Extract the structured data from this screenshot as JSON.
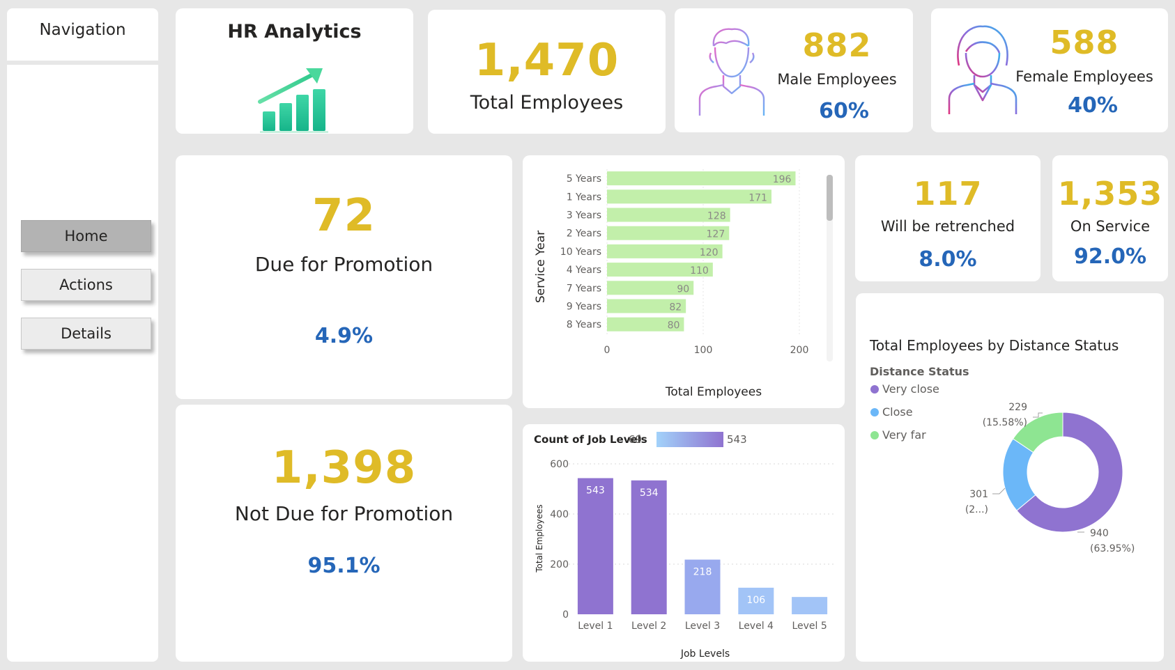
{
  "navigation": {
    "title": "Navigation",
    "buttons": [
      {
        "label": "Home",
        "active": true
      },
      {
        "label": "Actions",
        "active": false
      },
      {
        "label": "Details",
        "active": false
      }
    ]
  },
  "header": {
    "title": "HR Analytics",
    "logo_icon": "growth-chart-icon"
  },
  "kpis": {
    "total_employees": {
      "value": "1,470",
      "label": "Total Employees"
    },
    "male": {
      "value": "882",
      "label": "Male Employees",
      "pct": "60%",
      "icon": "male-user-icon"
    },
    "female": {
      "value": "588",
      "label": "Female Employees",
      "pct": "40%",
      "icon": "female-user-icon"
    },
    "due_promotion": {
      "value": "72",
      "label": "Due for Promotion",
      "pct": "4.9%"
    },
    "not_due_promotion": {
      "value": "1,398",
      "label": "Not Due for Promotion",
      "pct": "95.1%"
    },
    "retrenched": {
      "value": "117",
      "label": "Will be retrenched",
      "pct": "8.0%"
    },
    "on_service": {
      "value": "1,353",
      "label": "On Service",
      "pct": "92.0%"
    }
  },
  "colors": {
    "kpi_value": "#dfbb27",
    "kpi_pct": "#2566b8",
    "bar_green": "#c2efaa",
    "level_purple": "#8f73d0",
    "level_blue": "#a2c4f7",
    "very_close": "#8f73d0",
    "close": "#6bb7f8",
    "very_far": "#8ee592"
  },
  "chart_data": [
    {
      "type": "bar",
      "orientation": "horizontal",
      "categories": [
        "5 Years",
        "1 Years",
        "3 Years",
        "2 Years",
        "10 Years",
        "4 Years",
        "7 Years",
        "9 Years",
        "8 Years"
      ],
      "values": [
        196,
        171,
        128,
        127,
        120,
        110,
        90,
        82,
        80
      ],
      "xlabel": "Total Employees",
      "ylabel": "Service Year",
      "xlim": [
        0,
        200
      ],
      "xticks": [
        "0",
        "100",
        "200"
      ],
      "grid": true
    },
    {
      "type": "bar",
      "categories": [
        "Level 1",
        "Level 2",
        "Level 3",
        "Level 4",
        "Level 5"
      ],
      "values": [
        543,
        534,
        218,
        106,
        69
      ],
      "data_labels": [
        "543",
        "534",
        "218",
        "106",
        ""
      ],
      "title": "Count of Job Levels",
      "legend_min": "69",
      "legend_max": "543",
      "xlabel": "Job Levels",
      "ylabel": "Total Employees",
      "ylim": [
        0,
        600
      ],
      "yticks": [
        "0",
        "200",
        "400",
        "600"
      ],
      "grid": true
    },
    {
      "type": "pie",
      "donut": true,
      "title": "Total Employees by Distance Status",
      "legend_title": "Distance Status",
      "legend": [
        "Very close",
        "Close",
        "Very far"
      ],
      "values": [
        940,
        301,
        229
      ],
      "labels": [
        {
          "value": "940",
          "pct": "(63.95%)"
        },
        {
          "value": "301",
          "pct": "(2...)"
        },
        {
          "value": "229",
          "pct": "(15.58%)"
        }
      ]
    }
  ]
}
